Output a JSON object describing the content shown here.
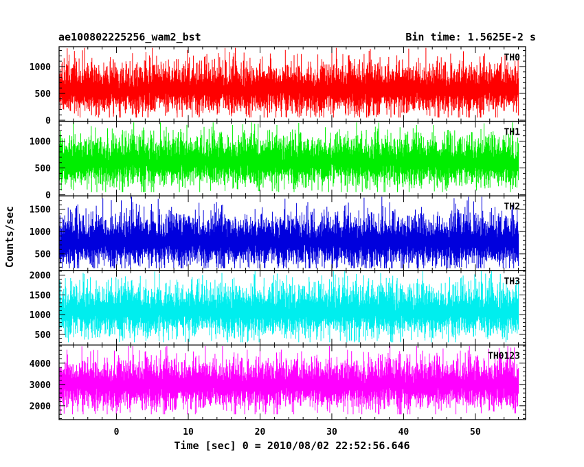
{
  "chart_data": {
    "type": "line",
    "title_left": "ae100802225256_wam2_bst",
    "title_right": "Bin time: 1.5625E-2 s",
    "xlabel": "Time [sec] 0 = 2010/08/02 22:52:56.646",
    "ylabel": "Counts/sec",
    "xlim": [
      -8,
      57
    ],
    "x_data_range": [
      -8,
      56
    ],
    "x_ticks": [
      0,
      10,
      20,
      30,
      40,
      50
    ],
    "x_tick_labels": [
      "0",
      "10",
      "20",
      "30",
      "40",
      "50"
    ],
    "panels": [
      {
        "name": "TH0",
        "color": "#ff0000",
        "ylim": [
          -20,
          1370
        ],
        "y_ticks": [
          0,
          500,
          1000
        ],
        "y_tick_labels": [
          "0",
          "500",
          "1000"
        ],
        "mean": 560,
        "min": 50,
        "max": 1350
      },
      {
        "name": "TH1",
        "color": "#00ee00",
        "ylim": [
          -20,
          1370
        ],
        "y_ticks": [
          0,
          500,
          1000
        ],
        "y_tick_labels": [
          "0",
          "500",
          "1000"
        ],
        "mean": 600,
        "min": 50,
        "max": 1350
      },
      {
        "name": "TH2",
        "color": "#0000dd",
        "ylim": [
          130,
          1800
        ],
        "y_ticks": [
          500,
          1000,
          1500
        ],
        "y_tick_labels": [
          "500",
          "1000",
          "1500"
        ],
        "mean": 760,
        "min": 180,
        "max": 1780
      },
      {
        "name": "TH3",
        "color": "#00eeee",
        "ylim": [
          230,
          2120
        ],
        "y_ticks": [
          500,
          1000,
          1500,
          2000
        ],
        "y_tick_labels": [
          "500",
          "1000",
          "1500",
          "2000"
        ],
        "mean": 1060,
        "min": 300,
        "max": 2100
      },
      {
        "name": "TH0123",
        "color": "#ff00ff",
        "ylim": [
          1350,
          4850
        ],
        "y_ticks": [
          2000,
          3000,
          4000
        ],
        "y_tick_labels": [
          "2000",
          "3000",
          "4000"
        ],
        "mean": 2950,
        "min": 1600,
        "max": 4800
      }
    ],
    "grid": false
  }
}
